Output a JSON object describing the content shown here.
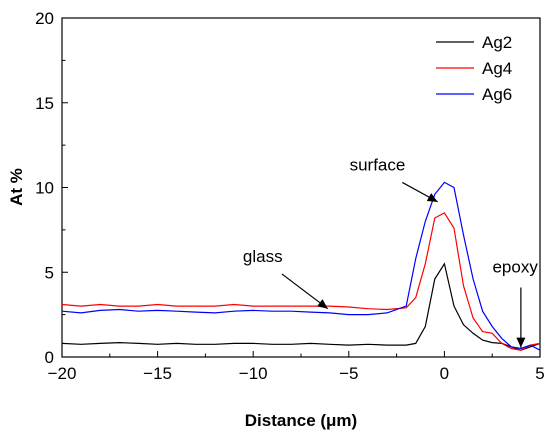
{
  "chart_data": {
    "type": "line",
    "xlabel": "Distance (μm)",
    "ylabel": "At %",
    "xlim": [
      -20,
      5
    ],
    "ylim": [
      0,
      20
    ],
    "xticks": [
      -20,
      -15,
      -10,
      -5,
      0,
      5
    ],
    "xtick_labels": [
      "−20",
      "−15",
      "−10",
      "−5",
      "0",
      "5"
    ],
    "yticks": [
      0,
      5,
      10,
      15,
      20
    ],
    "ytick_labels": [
      "0",
      "5",
      "10",
      "15",
      "20"
    ],
    "grid": false,
    "legend_position": "top-right",
    "series": [
      {
        "name": "Ag2",
        "color": "#000000",
        "x": [
          -20,
          -19,
          -18,
          -17,
          -16,
          -15,
          -14,
          -13,
          -12,
          -11,
          -10,
          -9,
          -8,
          -7,
          -6,
          -5,
          -4,
          -3,
          -2,
          -1.5,
          -1,
          -0.5,
          0,
          0.5,
          1,
          1.5,
          2,
          2.5,
          3,
          3.5,
          4,
          4.5,
          5
        ],
        "y": [
          0.8,
          0.75,
          0.8,
          0.85,
          0.8,
          0.75,
          0.8,
          0.75,
          0.75,
          0.8,
          0.8,
          0.75,
          0.75,
          0.8,
          0.75,
          0.7,
          0.75,
          0.7,
          0.7,
          0.8,
          1.8,
          4.6,
          5.5,
          3.0,
          1.9,
          1.4,
          1.0,
          0.85,
          0.8,
          0.6,
          0.4,
          0.6,
          0.8
        ]
      },
      {
        "name": "Ag4",
        "color": "#ff0000",
        "x": [
          -20,
          -19,
          -18,
          -17,
          -16,
          -15,
          -14,
          -13,
          -12,
          -11,
          -10,
          -9,
          -8,
          -7,
          -6,
          -5,
          -4,
          -3,
          -2,
          -1.5,
          -1,
          -0.5,
          0,
          0.5,
          1,
          1.5,
          2,
          2.5,
          3,
          3.5,
          4,
          4.5,
          5
        ],
        "y": [
          3.1,
          3.0,
          3.1,
          3.0,
          3.0,
          3.1,
          3.0,
          3.0,
          3.0,
          3.1,
          3.0,
          3.0,
          3.0,
          3.0,
          3.0,
          2.95,
          2.85,
          2.8,
          2.9,
          3.5,
          5.5,
          8.2,
          8.5,
          7.6,
          4.2,
          2.3,
          1.5,
          1.4,
          0.8,
          0.5,
          0.4,
          0.7,
          0.8
        ]
      },
      {
        "name": "Ag6",
        "color": "#0000ff",
        "x": [
          -20,
          -19,
          -18,
          -17,
          -16,
          -15,
          -14,
          -13,
          -12,
          -11,
          -10,
          -9,
          -8,
          -7,
          -6,
          -5,
          -4,
          -3,
          -2,
          -1.5,
          -1,
          -0.5,
          0,
          0.5,
          1,
          1.5,
          2,
          2.5,
          3,
          3.5,
          4,
          4.5,
          5
        ],
        "y": [
          2.7,
          2.6,
          2.75,
          2.8,
          2.7,
          2.75,
          2.7,
          2.65,
          2.6,
          2.7,
          2.75,
          2.7,
          2.7,
          2.65,
          2.6,
          2.5,
          2.5,
          2.6,
          3.0,
          5.8,
          8.0,
          9.6,
          10.3,
          10.0,
          7.2,
          4.6,
          2.7,
          1.8,
          1.1,
          0.6,
          0.5,
          0.7,
          0.4
        ]
      }
    ],
    "annotations": [
      {
        "text": "glass",
        "x": -9.5,
        "y": 5.6
      },
      {
        "text": "surface",
        "x": -3.5,
        "y": 11.0
      },
      {
        "text": "epoxy",
        "x": 3.7,
        "y": 5.0
      }
    ]
  }
}
